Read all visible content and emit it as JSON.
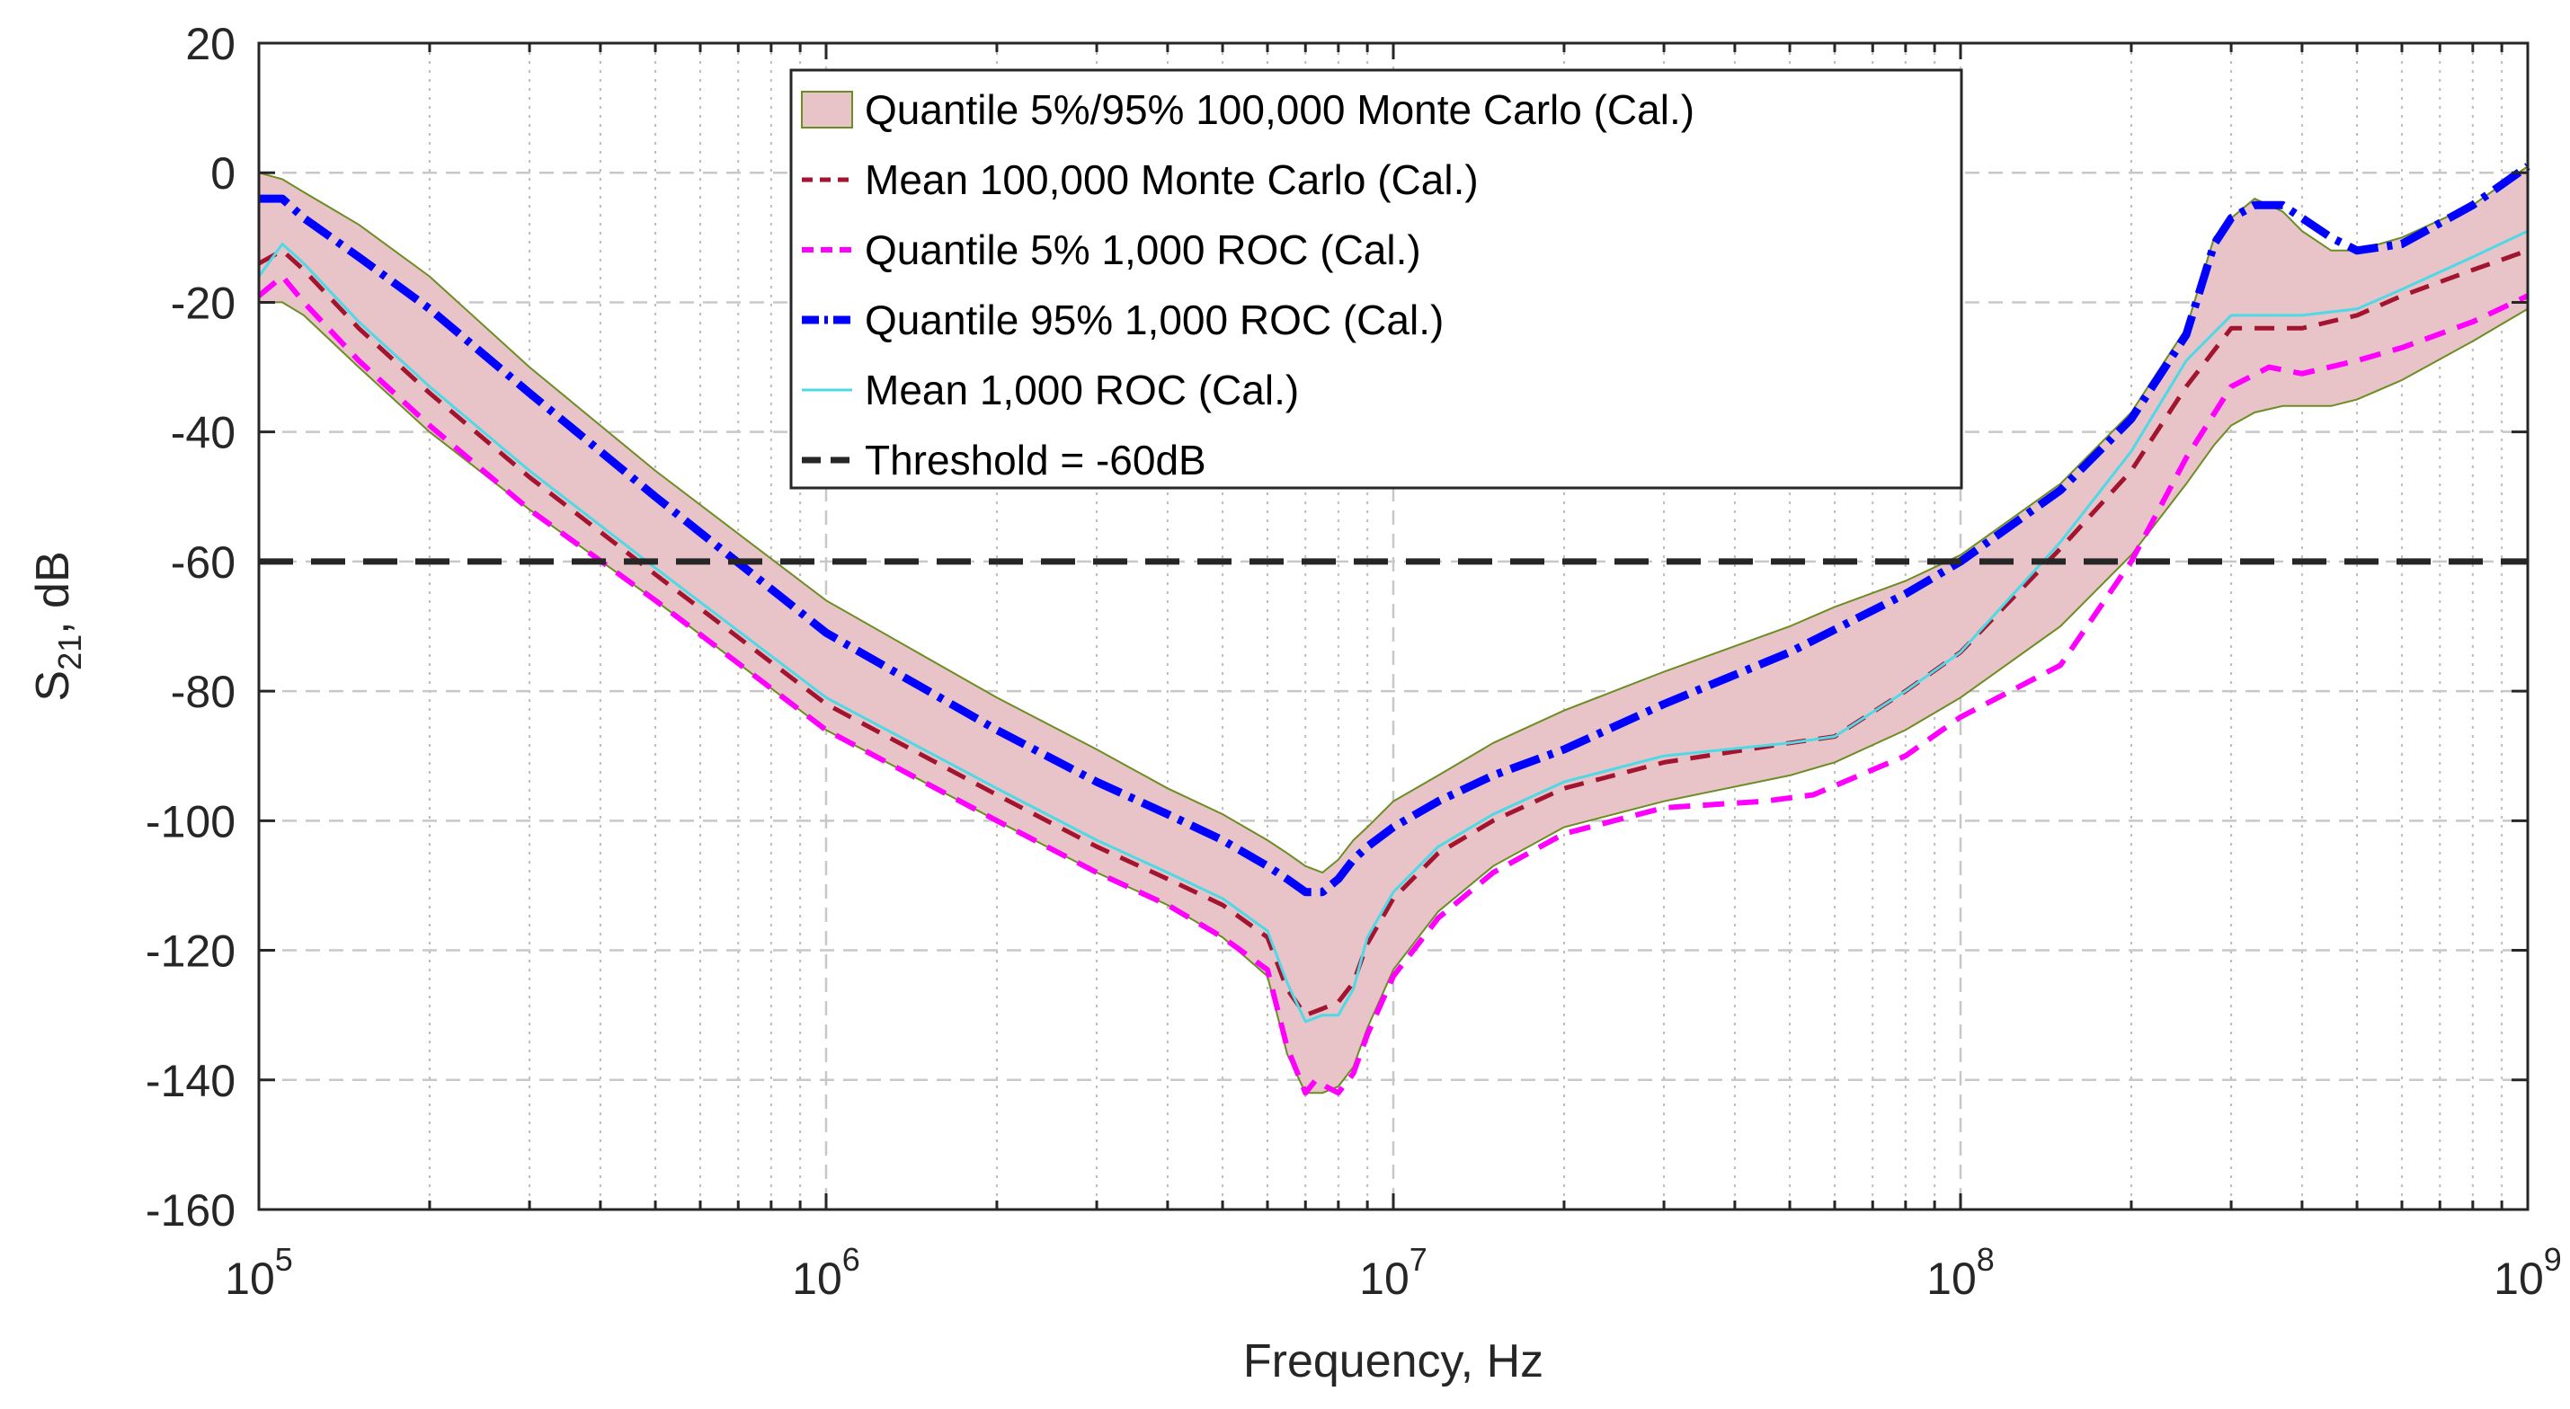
{
  "chart_data": {
    "type": "line",
    "title": "",
    "xlabel": "Frequency, Hz",
    "ylabel": "S",
    "ylabel_subscript": "21",
    "ylabel_suffix": ", dB",
    "xscale": "log",
    "xlim": [
      100000,
      1000000000
    ],
    "ylim": [
      -160,
      20
    ],
    "grid": true,
    "legend_position": "top-center",
    "x_ticks": [
      {
        "value": 100000,
        "base": "10",
        "exp": "5"
      },
      {
        "value": 1000000,
        "base": "10",
        "exp": "6"
      },
      {
        "value": 10000000,
        "base": "10",
        "exp": "7"
      },
      {
        "value": 100000000,
        "base": "10",
        "exp": "8"
      },
      {
        "value": 1000000000,
        "base": "10",
        "exp": "9"
      }
    ],
    "y_ticks": [
      {
        "value": 20,
        "label": "20"
      },
      {
        "value": 0,
        "label": "0"
      },
      {
        "value": -20,
        "label": "-20"
      },
      {
        "value": -40,
        "label": "-40"
      },
      {
        "value": -60,
        "label": "-60"
      },
      {
        "value": -80,
        "label": "-80"
      },
      {
        "value": -100,
        "label": "-100"
      },
      {
        "value": -120,
        "label": "-120"
      },
      {
        "value": -140,
        "label": "-140"
      },
      {
        "value": -160,
        "label": "-160"
      }
    ],
    "band": {
      "name": "Quantile 5%/95% 100,000 Monte Carlo (Cal.)",
      "fill": "#e8c3c8",
      "edge": "#6b8e23",
      "x": [
        100000,
        110000,
        120000,
        150000,
        200000,
        300000,
        500000,
        1000000,
        2000000,
        3000000,
        4000000,
        5000000,
        6000000,
        6500000,
        7000000,
        7500000,
        8000000,
        8500000,
        9000000,
        10000000,
        12000000,
        15000000,
        20000000,
        30000000,
        50000000,
        60000000,
        80000000,
        100000000,
        150000000,
        200000000,
        250000000,
        280000000,
        300000000,
        330000000,
        370000000,
        400000000,
        450000000,
        500000000,
        600000000,
        800000000,
        1000000000
      ],
      "upper": [
        0,
        -1,
        -3,
        -8,
        -16,
        -30,
        -46,
        -66,
        -81,
        -89,
        -95,
        -99,
        -103,
        -105,
        -107,
        -108,
        -106,
        -103,
        -101,
        -97,
        -93,
        -88,
        -83,
        -77,
        -70,
        -67,
        -63,
        -59,
        -48,
        -37,
        -24,
        -10,
        -7,
        -4,
        -6,
        -9,
        -12,
        -12,
        -10,
        -5,
        1
      ],
      "lower": [
        -20,
        -20,
        -22,
        -30,
        -40,
        -52,
        -66,
        -86,
        -100,
        -108,
        -113,
        -118,
        -124,
        -136,
        -142,
        -142,
        -141,
        -138,
        -132,
        -123,
        -114,
        -107,
        -101,
        -97,
        -93,
        -91,
        -86,
        -81,
        -70,
        -59,
        -48,
        -42,
        -39,
        -37,
        -36,
        -36,
        -36,
        -35,
        -32,
        -26,
        -21
      ]
    },
    "series": [
      {
        "name": "Mean 100,000 Monte Carlo (Cal.)",
        "color": "#a2142f",
        "width": 5,
        "dash": "22 14",
        "x": [
          100000,
          110000,
          120000,
          150000,
          200000,
          300000,
          500000,
          1000000,
          2000000,
          3000000,
          4000000,
          5000000,
          6000000,
          6500000,
          7000000,
          7500000,
          8000000,
          8500000,
          9000000,
          10000000,
          12000000,
          15000000,
          20000000,
          30000000,
          50000000,
          60000000,
          80000000,
          100000000,
          150000000,
          200000000,
          250000000,
          300000000,
          350000000,
          400000000,
          500000000,
          600000000,
          800000000,
          1000000000
        ],
        "y": [
          -14,
          -12,
          -15,
          -24,
          -34,
          -47,
          -62,
          -82,
          -96,
          -104,
          -109,
          -113,
          -118,
          -126,
          -130,
          -129,
          -128,
          -125,
          -119,
          -112,
          -105,
          -100,
          -95,
          -91,
          -88,
          -87,
          -80,
          -74,
          -58,
          -46,
          -33,
          -24,
          -24,
          -24,
          -22,
          -19,
          -15,
          -12
        ]
      },
      {
        "name": "Quantile 5% 1,000 ROC (Cal.)",
        "color": "#ff00ff",
        "width": 6,
        "dash": "24 14",
        "x": [
          100000,
          110000,
          120000,
          150000,
          200000,
          300000,
          500000,
          1000000,
          2000000,
          3000000,
          4000000,
          5000000,
          6000000,
          6500000,
          7000000,
          7300000,
          7600000,
          8000000,
          8500000,
          9000000,
          10000000,
          12000000,
          15000000,
          20000000,
          30000000,
          45000000,
          55000000,
          80000000,
          100000000,
          150000000,
          200000000,
          250000000,
          300000000,
          350000000,
          400000000,
          500000000,
          600000000,
          800000000,
          1000000000
        ],
        "y": [
          -19,
          -16,
          -20,
          -29,
          -39,
          -52,
          -66,
          -86,
          -100,
          -108,
          -113,
          -118,
          -123,
          -135,
          -142,
          -140,
          -141,
          -142,
          -139,
          -133,
          -124,
          -115,
          -108,
          -102,
          -98,
          -97,
          -96,
          -90,
          -84,
          -76,
          -60,
          -44,
          -33,
          -30,
          -31,
          -29,
          -27,
          -23,
          -19
        ]
      },
      {
        "name": "Quantile 95% 1,000 ROC (Cal.)",
        "color": "#0000ff",
        "width": 9,
        "dash": "34 10 6 10",
        "x": [
          100000,
          110000,
          120000,
          150000,
          200000,
          300000,
          500000,
          1000000,
          2000000,
          3000000,
          4000000,
          5000000,
          6000000,
          6500000,
          7000000,
          7500000,
          8000000,
          8500000,
          9000000,
          10000000,
          12000000,
          15000000,
          20000000,
          30000000,
          50000000,
          80000000,
          100000000,
          150000000,
          200000000,
          250000000,
          280000000,
          300000000,
          330000000,
          370000000,
          400000000,
          450000000,
          500000000,
          600000000,
          800000000,
          1000000000
        ],
        "y": [
          -4,
          -4,
          -7,
          -13,
          -21,
          -34,
          -50,
          -71,
          -86,
          -94,
          -99,
          -103,
          -107,
          -109,
          -111,
          -111,
          -109,
          -106,
          -104,
          -101,
          -97,
          -93,
          -89,
          -82,
          -74,
          -65,
          -60,
          -49,
          -38,
          -25,
          -11,
          -7,
          -5,
          -5,
          -7,
          -10,
          -12,
          -11,
          -5,
          1
        ]
      },
      {
        "name": "Mean 1,000 ROC (Cal.)",
        "color": "#4dd9e6",
        "width": 3,
        "dash": "",
        "x": [
          100000,
          110000,
          120000,
          150000,
          200000,
          300000,
          500000,
          1000000,
          2000000,
          3000000,
          4000000,
          5000000,
          6000000,
          6500000,
          7000000,
          7500000,
          8000000,
          8500000,
          9000000,
          10000000,
          12000000,
          15000000,
          20000000,
          30000000,
          50000000,
          60000000,
          80000000,
          100000000,
          150000000,
          200000000,
          250000000,
          300000000,
          350000000,
          400000000,
          500000000,
          600000000,
          800000000,
          1000000000
        ],
        "y": [
          -16,
          -11,
          -14,
          -23,
          -33,
          -46,
          -61,
          -81,
          -95,
          -103,
          -108,
          -112,
          -117,
          -125,
          -131,
          -130,
          -130,
          -126,
          -118,
          -111,
          -104,
          -99,
          -94,
          -90,
          -88,
          -87,
          -80,
          -74,
          -57,
          -43,
          -29,
          -22,
          -22,
          -22,
          -21,
          -18,
          -13,
          -9
        ]
      },
      {
        "name": "Threshold = -60dB",
        "color": "#262626",
        "width": 7,
        "dash": "38 20",
        "x": [
          100000,
          1000000000
        ],
        "y": [
          -60,
          -60
        ]
      }
    ]
  }
}
